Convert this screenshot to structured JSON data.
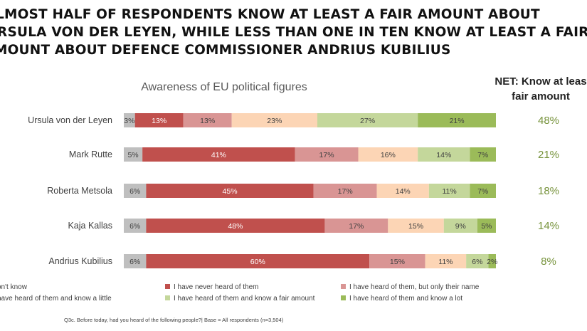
{
  "headline": {
    "line1": "lmost half of respondents know at least a fair amount about",
    "line2": "rsula von der Leyen, while less than one in ten know at least a fair",
    "line3": "mount about Defence Commissioner Andrius Kubilius"
  },
  "net_header": {
    "line1": "NET: Know at leas",
    "line2": "fair amount"
  },
  "footnote": "Q3c. Before today, had you heard of the following people?| Base = All respondents (n=3,504)",
  "chart_data": {
    "type": "bar",
    "orientation": "horizontal",
    "stacked": true,
    "title": "Awareness of EU political figures",
    "categories": [
      "Ursula von der Leyen",
      "Mark Rutte",
      "Roberta Metsola",
      "Kaja Kallas",
      "Andrius Kubilius"
    ],
    "series": [
      {
        "name": "on't know",
        "color": "#bfbfbf",
        "values": [
          3,
          5,
          6,
          6,
          6
        ]
      },
      {
        "name": "I have never heard of them",
        "color": "#c0504d",
        "values": [
          13,
          41,
          45,
          48,
          60
        ]
      },
      {
        "name": "I have heard of them, but only their name",
        "color": "#d99594",
        "values": [
          13,
          17,
          17,
          17,
          15
        ]
      },
      {
        "name": "have heard of them and know a little",
        "color": "#fcd5b5",
        "values": [
          23,
          16,
          14,
          15,
          11
        ]
      },
      {
        "name": "I have heard of them and know a fair amount",
        "color": "#c4d79b",
        "values": [
          27,
          14,
          11,
          9,
          6
        ]
      },
      {
        "name": "I have heard of them and know a lot",
        "color": "#9bbb59",
        "values": [
          21,
          7,
          7,
          5,
          2
        ]
      }
    ],
    "value_labels": [
      [
        "3%",
        "13%",
        "13%",
        "23%",
        "27%",
        "21%"
      ],
      [
        "5%",
        "41%",
        "17%",
        "16%",
        "14%",
        "7%"
      ],
      [
        "6%",
        "45%",
        "17%",
        "14%",
        "11%",
        "7%"
      ],
      [
        "6%",
        "48%",
        "17%",
        "15%",
        "9%",
        "5%"
      ],
      [
        "6%",
        "60%",
        "15%",
        "11%",
        "6%",
        "2%"
      ]
    ],
    "net_values": [
      48,
      21,
      18,
      14,
      8
    ],
    "net_labels": [
      "48%",
      "21%",
      "18%",
      "14%",
      "8%"
    ],
    "net_color": "#77933c",
    "legend_position": "bottom",
    "grid": false
  }
}
